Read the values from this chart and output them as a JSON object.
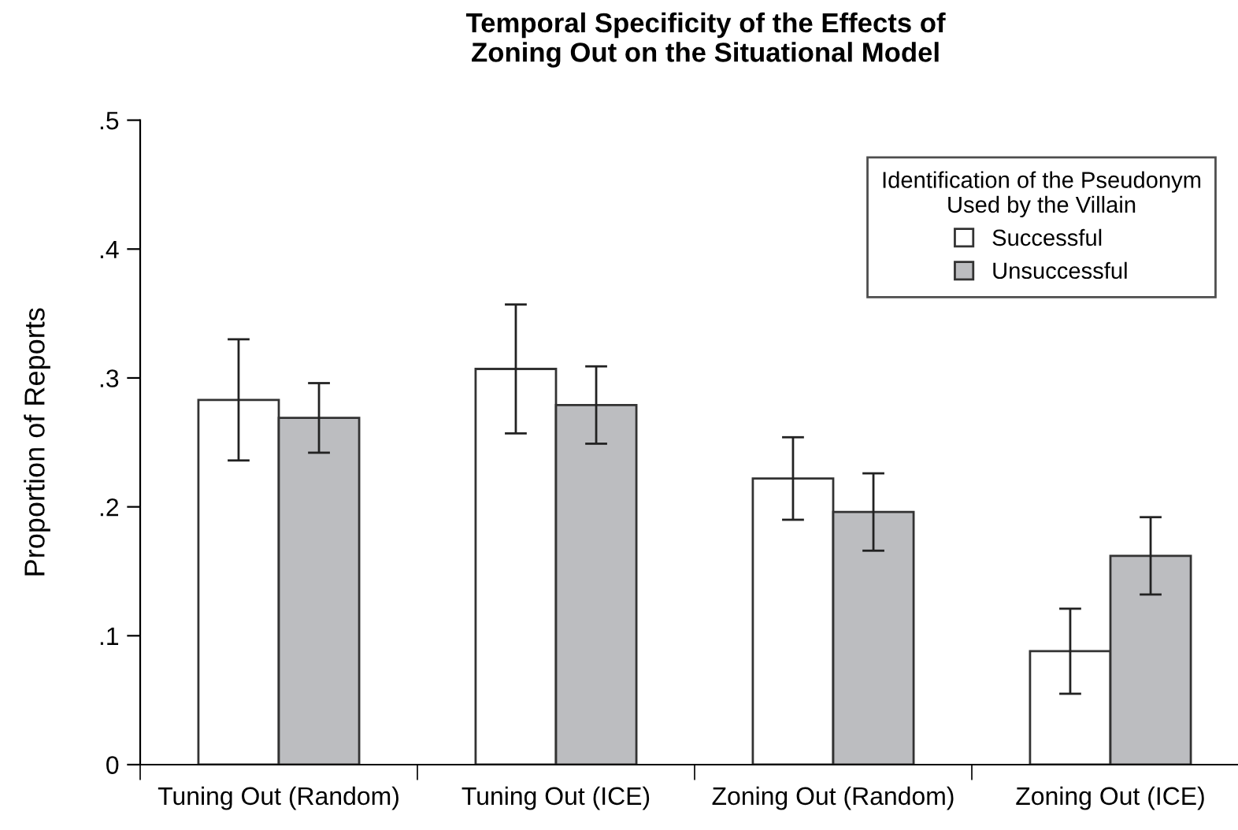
{
  "chart_data": {
    "type": "bar",
    "title": "Temporal Specificity of the Effects of\nZoning Out on the Situational Model",
    "ylabel": "Proportion of Reports",
    "legend_title": "Identification of the Pseudonym\nUsed by the Villain",
    "categories": [
      "Tuning Out (Random)",
      "Tuning Out (ICE)",
      "Zoning Out (Random)",
      "Zoning Out (ICE)"
    ],
    "series": [
      {
        "name": "Successful",
        "color": "#ffffff",
        "values": [
          0.283,
          0.307,
          0.222,
          0.088
        ],
        "errors": [
          0.047,
          0.05,
          0.032,
          0.033
        ]
      },
      {
        "name": "Unsuccessful",
        "color": "#bcbdc0",
        "values": [
          0.269,
          0.279,
          0.196,
          0.162
        ],
        "errors": [
          0.027,
          0.03,
          0.03,
          0.03
        ]
      }
    ],
    "ylim": [
      0,
      0.5
    ],
    "yticks": [
      {
        "value": 0,
        "label": "0"
      },
      {
        "value": 0.1,
        "label": ".1"
      },
      {
        "value": 0.2,
        "label": ".2"
      },
      {
        "value": 0.3,
        "label": ".3"
      },
      {
        "value": 0.4,
        "label": ".4"
      },
      {
        "value": 0.5,
        "label": ".5"
      }
    ],
    "grid": false,
    "legend": "top right"
  }
}
